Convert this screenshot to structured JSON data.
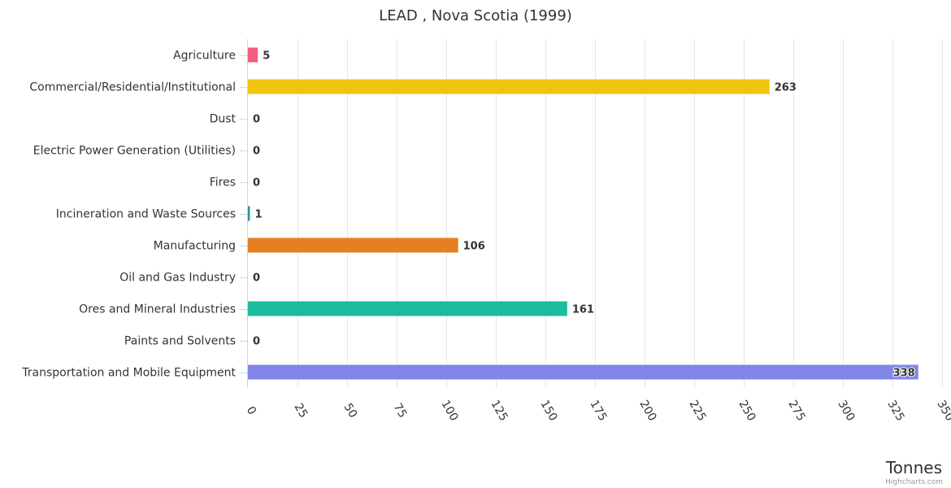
{
  "chart_data": {
    "type": "bar",
    "orientation": "horizontal",
    "title": "LEAD , Nova Scotia (1999)",
    "xlabel": "",
    "ylabel": "Tonnes",
    "categories": [
      "Agriculture",
      "Commercial/Residential/Institutional",
      "Dust",
      "Electric Power Generation (Utilities)",
      "Fires",
      "Incineration and Waste Sources",
      "Manufacturing",
      "Oil and Gas Industry",
      "Ores and Mineral Industries",
      "Paints and Solvents",
      "Transportation and Mobile Equipment"
    ],
    "values": [
      5,
      263,
      0,
      0,
      0,
      1,
      106,
      0,
      161,
      0,
      338
    ],
    "colors": [
      "#f45b7e",
      "#f1c40f",
      null,
      null,
      null,
      "#2f8f9d",
      "#e67e22",
      null,
      "#1abc9c",
      null,
      "#8085e9"
    ],
    "data_labels": [
      "5",
      "263",
      "0",
      "0",
      "0",
      "1",
      "106",
      "0",
      "161",
      "0",
      "338"
    ],
    "value_axis": {
      "min": 0,
      "max": 350,
      "tick_interval": 25,
      "ticks": [
        "0",
        "25",
        "50",
        "75",
        "100",
        "125",
        "150",
        "175",
        "200",
        "225",
        "250",
        "275",
        "300",
        "325",
        "350"
      ],
      "title": "Tonnes",
      "gridlines": true
    },
    "legend": "none"
  },
  "credits": "Highcharts.com"
}
